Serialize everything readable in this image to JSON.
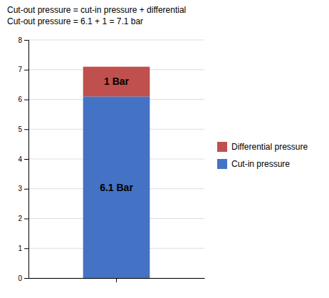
{
  "chart_data": {
    "type": "bar",
    "stacked": true,
    "categories": [
      null
    ],
    "series": [
      {
        "name": "Cut-in pressure",
        "color": "#4472C4",
        "values": [
          6.1
        ],
        "value_labels": [
          "6.1 Bar"
        ]
      },
      {
        "name": "Differential pressure",
        "color": "#C0504D",
        "values": [
          1.0
        ],
        "value_labels": [
          "1 Bar"
        ]
      }
    ],
    "data_labels": true,
    "annotations": [
      "Cut-out pressure = cut-in pressure + differential",
      "Cut-out pressure = 6.1 + 1 = 7.1 bar"
    ],
    "ylim": [
      0,
      8
    ],
    "yticks": [
      0,
      1,
      2,
      3,
      4,
      5,
      6,
      7,
      8
    ],
    "grid": true,
    "legend": "right",
    "tick_labels": "y"
  }
}
